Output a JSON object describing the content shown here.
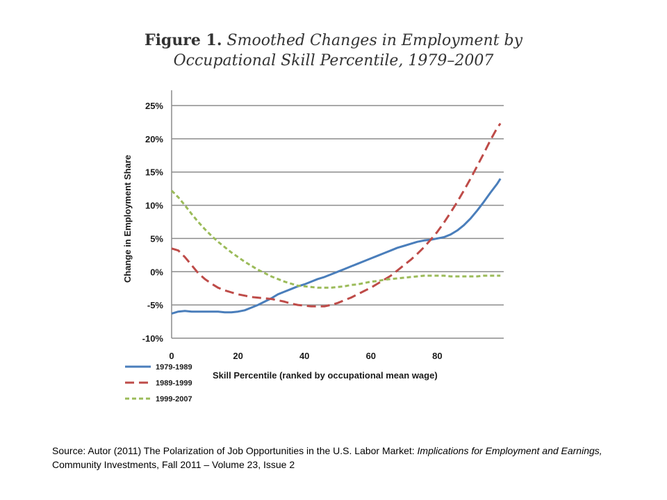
{
  "title": {
    "bold": "Figure 1.",
    "line1_rest": "Smoothed Changes in Employment by",
    "line2": "Occupational Skill Percentile, 1979–2007"
  },
  "source_note": {
    "prefix": "Source: Autor (2011) The Polarization of Job Opportunities in the U.S. Labor Market: ",
    "italic": "Implications for Employment and Earnings,",
    "suffix": " Community Investments, Fall 2011 – Volume 23, Issue 2"
  },
  "chart_data": {
    "type": "line",
    "xlabel": "Skill Percentile (ranked by occupational  mean wage)",
    "ylabel": "Change in Employment Share",
    "xlim": [
      0,
      100
    ],
    "ylim": [
      -10,
      25
    ],
    "x_ticks": [
      0,
      20,
      40,
      60,
      80
    ],
    "x_tick_labels": [
      "0",
      "20",
      "40",
      "60",
      "80"
    ],
    "y_ticks": [
      25,
      20,
      15,
      10,
      5,
      0,
      -5,
      -10
    ],
    "y_tick_labels": [
      "25%",
      "20%",
      "15%",
      "10%",
      "5%",
      "0%",
      "-5%",
      "-10%"
    ],
    "grid": "horizontal",
    "legend_position": "bottom-left",
    "x": [
      0,
      2,
      4,
      6,
      8,
      10,
      12,
      14,
      16,
      18,
      20,
      22,
      24,
      26,
      28,
      30,
      32,
      34,
      36,
      38,
      40,
      42,
      44,
      46,
      48,
      50,
      52,
      54,
      56,
      58,
      60,
      62,
      64,
      66,
      68,
      70,
      72,
      74,
      76,
      78,
      80,
      82,
      84,
      86,
      88,
      90,
      92,
      94,
      96,
      98,
      99
    ],
    "series": [
      {
        "name": "1979-1989",
        "color": "#4a7ebb",
        "dash": "solid",
        "values": [
          -6.3,
          -6.0,
          -5.9,
          -6.0,
          -6.0,
          -6.0,
          -6.0,
          -6.0,
          -6.1,
          -6.1,
          -6.0,
          -5.8,
          -5.4,
          -5.0,
          -4.5,
          -4.0,
          -3.4,
          -3.0,
          -2.6,
          -2.2,
          -1.9,
          -1.5,
          -1.1,
          -0.8,
          -0.4,
          0.0,
          0.4,
          0.8,
          1.2,
          1.6,
          2.0,
          2.4,
          2.8,
          3.2,
          3.6,
          3.9,
          4.2,
          4.5,
          4.7,
          4.8,
          5.0,
          5.2,
          5.6,
          6.2,
          7.0,
          8.0,
          9.2,
          10.5,
          11.9,
          13.2,
          14.0
        ]
      },
      {
        "name": "1989-1999",
        "color": "#be4b48",
        "dash": "long",
        "values": [
          3.5,
          3.2,
          2.2,
          1.0,
          -0.2,
          -1.1,
          -1.8,
          -2.4,
          -2.8,
          -3.1,
          -3.4,
          -3.6,
          -3.8,
          -3.9,
          -4.0,
          -4.1,
          -4.3,
          -4.5,
          -4.8,
          -5.0,
          -5.1,
          -5.2,
          -5.2,
          -5.2,
          -5.0,
          -4.7,
          -4.3,
          -3.9,
          -3.4,
          -2.9,
          -2.4,
          -1.8,
          -1.2,
          -0.6,
          0.2,
          1.0,
          1.8,
          2.7,
          3.7,
          4.8,
          6.0,
          7.4,
          8.9,
          10.5,
          12.2,
          14.0,
          15.9,
          17.8,
          19.8,
          21.6,
          22.3
        ]
      },
      {
        "name": "1999-2007",
        "color": "#9bbb59",
        "dash": "short",
        "values": [
          12.2,
          11.2,
          10.0,
          8.7,
          7.5,
          6.4,
          5.4,
          4.5,
          3.7,
          2.9,
          2.2,
          1.5,
          0.9,
          0.3,
          -0.2,
          -0.7,
          -1.1,
          -1.5,
          -1.8,
          -2.1,
          -2.2,
          -2.3,
          -2.4,
          -2.4,
          -2.4,
          -2.3,
          -2.2,
          -2.0,
          -1.9,
          -1.7,
          -1.5,
          -1.4,
          -1.2,
          -1.1,
          -1.0,
          -0.9,
          -0.8,
          -0.7,
          -0.6,
          -0.6,
          -0.6,
          -0.6,
          -0.7,
          -0.7,
          -0.7,
          -0.7,
          -0.7,
          -0.6,
          -0.6,
          -0.6,
          -0.6
        ]
      }
    ]
  }
}
